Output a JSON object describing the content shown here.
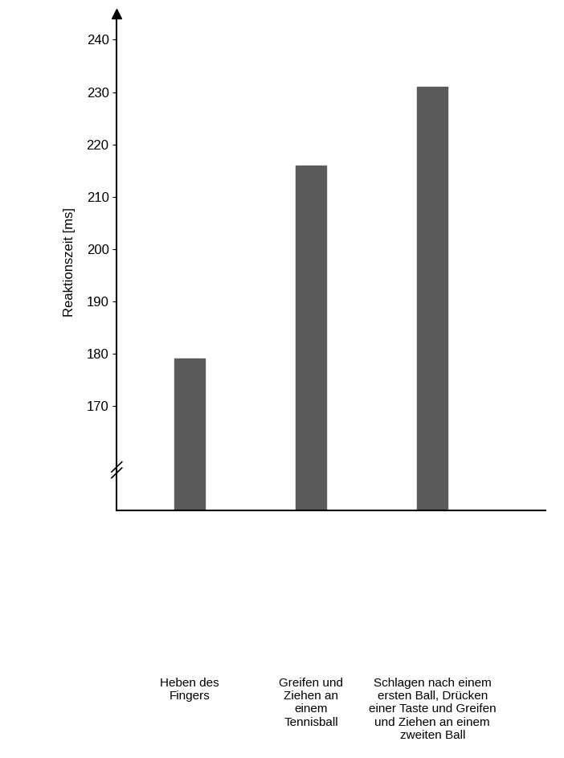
{
  "chart_data": {
    "type": "bar",
    "y_label": "Reaktionszeit [ms]",
    "categories": [
      "Heben des Fingers",
      "Greifen und Ziehen an einem Tennisball",
      "Schlagen nach einem ersten Ball, Drücken einer Taste und Greifen und Ziehen an einem zweiten Ball"
    ],
    "values": [
      179,
      216,
      231
    ],
    "color": "#5a5a5a",
    "ylim": [
      150,
      245
    ],
    "yticks": [
      170,
      180,
      190,
      200,
      210,
      220,
      230,
      240
    ],
    "grid": false
  }
}
